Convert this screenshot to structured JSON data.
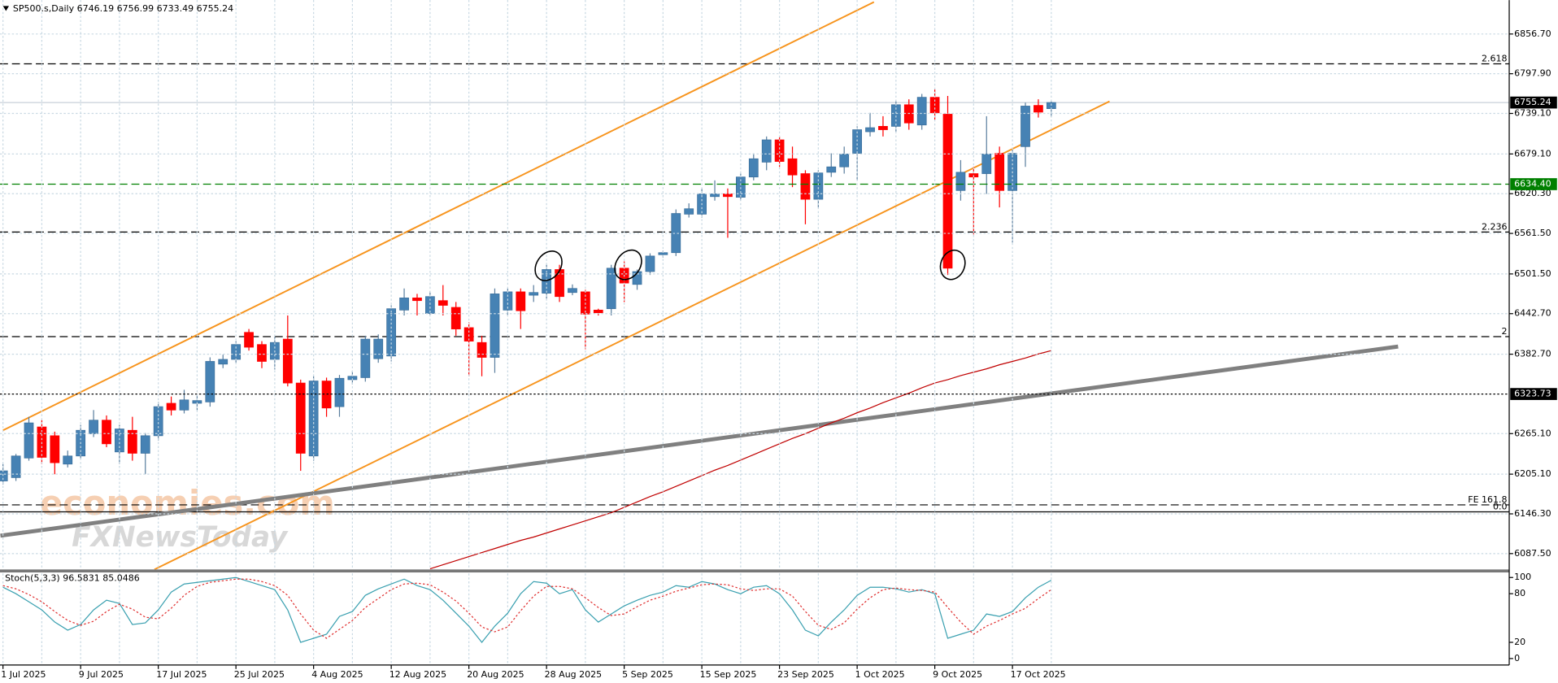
{
  "chart_data": {
    "type": "candlestick",
    "symbol": "SP500.s,Daily",
    "categories": [
      "1 Jul 2025",
      null,
      null,
      null,
      null,
      null,
      "9 Jul 2025",
      null,
      null,
      null,
      null,
      null,
      "17 Jul 2025",
      null,
      null,
      null,
      null,
      null,
      "25 Jul 2025",
      null,
      null,
      null,
      null,
      null,
      "4 Aug 2025",
      null,
      null,
      null,
      null,
      null,
      "12 Aug 2025",
      null,
      null,
      null,
      null,
      null,
      "20 Aug 2025",
      null,
      null,
      null,
      null,
      null,
      "28 Aug 2025",
      null,
      null,
      null,
      null,
      null,
      "5 Sep 2025",
      null,
      null,
      null,
      null,
      null,
      "15 Sep 2025",
      null,
      null,
      null,
      null,
      null,
      "23 Sep 2025",
      null,
      null,
      null,
      null,
      null,
      "1 Oct 2025",
      null,
      null,
      null,
      null,
      null,
      "9 Oct 2025",
      null,
      null,
      null,
      null,
      null,
      "17 Oct 2025",
      null,
      null,
      null
    ],
    "open": [
      6195,
      6200,
      6229,
      6275,
      6262,
      6220,
      6232,
      6265,
      6285,
      6238,
      6270,
      6236,
      6262,
      6310,
      6300,
      6310,
      6312,
      6368,
      6375,
      6415,
      6397,
      6375,
      6405,
      6340,
      6232,
      6343,
      6305,
      6345,
      6348,
      6376,
      6380,
      6448,
      6466,
      6443,
      6462,
      6452,
      6422,
      6400,
      6378,
      6448,
      6475,
      6470,
      6473,
      6508,
      6474,
      6475,
      6448,
      6450,
      6510,
      6486,
      6505,
      6530,
      6533,
      6590,
      6590,
      6616,
      6620,
      6615,
      6645,
      6667,
      6700,
      6672,
      6650,
      6612,
      6652,
      6660,
      6680,
      6712,
      6720,
      6720,
      6752,
      6722,
      6763,
      6738,
      6625,
      6650,
      6650,
      6680,
      6625,
      6690,
      6751,
      6746.19
    ],
    "high": [
      6220,
      6235,
      6290,
      6285,
      6268,
      6240,
      6278,
      6300,
      6292,
      6278,
      6290,
      6266,
      6312,
      6320,
      6330,
      6322,
      6378,
      6382,
      6402,
      6420,
      6402,
      6408,
      6440,
      6345,
      6350,
      6348,
      6352,
      6358,
      6410,
      6412,
      6455,
      6480,
      6472,
      6476,
      6485,
      6460,
      6430,
      6410,
      6480,
      6480,
      6480,
      6485,
      6515,
      6515,
      6486,
      6478,
      6450,
      6515,
      6520,
      6508,
      6532,
      6536,
      6597,
      6606,
      6628,
      6640,
      6628,
      6650,
      6680,
      6705,
      6705,
      6690,
      6655,
      6655,
      6680,
      6690,
      6720,
      6740,
      6735,
      6758,
      6760,
      6768,
      6775,
      6765,
      6670,
      6660,
      6735,
      6690,
      6685,
      6755,
      6760,
      6756.99
    ],
    "low": [
      6190,
      6195,
      6225,
      6220,
      6205,
      6215,
      6228,
      6260,
      6245,
      6220,
      6225,
      6205,
      6255,
      6292,
      6295,
      6300,
      6305,
      6362,
      6370,
      6388,
      6362,
      6360,
      6335,
      6210,
      6225,
      6290,
      6290,
      6338,
      6342,
      6370,
      6372,
      6440,
      6440,
      6440,
      6440,
      6410,
      6350,
      6350,
      6355,
      6440,
      6420,
      6460,
      6465,
      6460,
      6470,
      6390,
      6440,
      6440,
      6460,
      6478,
      6500,
      6526,
      6528,
      6585,
      6585,
      6610,
      6555,
      6610,
      6640,
      6655,
      6660,
      6630,
      6575,
      6600,
      6645,
      6650,
      6640,
      6705,
      6705,
      6712,
      6715,
      6715,
      6730,
      6500,
      6610,
      6560,
      6620,
      6600,
      6548,
      6660,
      6733,
      6733.49
    ],
    "close": [
      6210,
      6232,
      6281,
      6230,
      6222,
      6232,
      6270,
      6285,
      6250,
      6272,
      6236,
      6262,
      6305,
      6300,
      6315,
      6314,
      6372,
      6375,
      6397,
      6393,
      6372,
      6400,
      6340,
      6236,
      6343,
      6303,
      6347,
      6350,
      6405,
      6405,
      6450,
      6466,
      6462,
      6468,
      6455,
      6420,
      6402,
      6378,
      6472,
      6475,
      6447,
      6474,
      6508,
      6468,
      6480,
      6442,
      6444,
      6510,
      6488,
      6505,
      6528,
      6533,
      6591,
      6598,
      6620,
      6620,
      6616,
      6645,
      6672,
      6700,
      6668,
      6648,
      6612,
      6651,
      6660,
      6679,
      6715,
      6718,
      6715,
      6752,
      6725,
      6763,
      6740,
      6510,
      6652,
      6645,
      6679,
      6625,
      6680,
      6750,
      6741,
      6755.24
    ],
    "up_color": "#4682b4",
    "down_color": "#ff0000",
    "ylim": [
      6064,
      6904
    ],
    "yticks": [
      {
        "value": 6856.7,
        "label": "6856.70"
      },
      {
        "value": 6797.9,
        "label": "6797.90"
      },
      {
        "value": 6739.1,
        "label": "6739.10"
      },
      {
        "value": 6679.1,
        "label": "6679.10"
      },
      {
        "value": 6620.3,
        "label": "6620.30"
      },
      {
        "value": 6561.5,
        "label": "6561.50"
      },
      {
        "value": 6501.5,
        "label": "6501.50"
      },
      {
        "value": 6442.7,
        "label": "6442.70"
      },
      {
        "value": 6382.7,
        "label": "6382.70"
      },
      {
        "value": 6265.1,
        "label": "6265.10"
      },
      {
        "value": 6205.1,
        "label": "6205.10"
      },
      {
        "value": 6146.3,
        "label": "6146.30"
      },
      {
        "value": 6087.5,
        "label": "6087.50"
      }
    ],
    "grid": true,
    "ma": {
      "color": "#c00000",
      "values": [
        null,
        null,
        null,
        null,
        null,
        null,
        null,
        null,
        null,
        null,
        null,
        null,
        null,
        null,
        null,
        null,
        null,
        null,
        null,
        null,
        null,
        null,
        null,
        null,
        null,
        null,
        null,
        null,
        null,
        null,
        null,
        null,
        null,
        6065,
        6071,
        6077,
        6083,
        6089,
        6095,
        6101,
        6107,
        6112,
        6118,
        6124,
        6130,
        6136,
        6142,
        6148,
        6156,
        6164,
        6172,
        6179,
        6187,
        6195,
        6203,
        6211,
        6218,
        6226,
        6234,
        6242,
        6250,
        6258,
        6265,
        6273,
        6281,
        6288,
        6296,
        6303,
        6311,
        6318,
        6325,
        6333,
        6340,
        6345,
        6351,
        6356,
        6361,
        6367,
        6372,
        6377,
        6383,
        6388
      ]
    },
    "trendlines": [
      {
        "color": "#f7941d",
        "x": [
          0,
          67.3
        ],
        "y": [
          6270,
          6904
        ]
      },
      {
        "color": "#f7941d",
        "x": [
          11.7,
          85.5
        ],
        "y": [
          6064,
          6757
        ]
      },
      {
        "color": "#808080",
        "x": [
          -0.2,
          107.8
        ],
        "y": [
          6114,
          6394
        ]
      }
    ],
    "levels": [
      {
        "price": 6812.5,
        "text": "2.618",
        "style": "dashed",
        "color": "#000000"
      },
      {
        "price": 6563.5,
        "text": "2.236",
        "style": "dashed",
        "color": "#000000"
      },
      {
        "price": 6408.7,
        "text": "2",
        "style": "dashed",
        "color": "#000000"
      },
      {
        "price": 6159.6,
        "text": "FE 161.8",
        "style": "dashed",
        "color": "#000000"
      },
      {
        "price": 6149.3,
        "text": "0.0",
        "style": "solid",
        "color": "#000000"
      }
    ],
    "price_tags": [
      {
        "value": 6634.4,
        "label": "6634.40",
        "color": "#008000",
        "style": "dashed"
      },
      {
        "value": 6323.73,
        "label": "6323.73",
        "color": "#000000",
        "style": "dotted"
      }
    ],
    "watermark": [
      "economies.com",
      "FXNewsToday"
    ],
    "indicator": {
      "type": "line",
      "title": "Stoch(5,3,3)",
      "ylim": [
        -8,
        105
      ],
      "yticks": [
        100,
        80,
        20,
        0
      ],
      "series": [
        {
          "color": "#3aa0b0",
          "style": "solid",
          "values": [
            88,
            80,
            70,
            60,
            45,
            35,
            42,
            60,
            72,
            68,
            42,
            44,
            60,
            82,
            92,
            94,
            96,
            98,
            100,
            95,
            90,
            85,
            60,
            20,
            25,
            30,
            52,
            58,
            78,
            86,
            92,
            98,
            90,
            85,
            72,
            56,
            40,
            20,
            40,
            56,
            80,
            95,
            93,
            80,
            85,
            60,
            45,
            55,
            65,
            72,
            78,
            82,
            90,
            88,
            95,
            92,
            85,
            80,
            88,
            90,
            80,
            60,
            35,
            28,
            45,
            60,
            78,
            88,
            88,
            86,
            82,
            85,
            80,
            25,
            30,
            35,
            55,
            52,
            58,
            75,
            88,
            96.5831
          ]
        },
        {
          "color": "#e03030",
          "style": "dotted",
          "values": [
            90,
            86,
            79,
            70,
            58,
            47,
            41,
            46,
            58,
            67,
            61,
            51,
            49,
            62,
            78,
            89,
            94,
            96,
            98,
            98,
            95,
            90,
            78,
            55,
            35,
            25,
            36,
            47,
            63,
            74,
            85,
            92,
            93,
            91,
            82,
            71,
            56,
            39,
            33,
            39,
            59,
            77,
            89,
            89,
            86,
            75,
            63,
            53,
            55,
            64,
            72,
            77,
            83,
            87,
            91,
            92,
            91,
            86,
            84,
            86,
            86,
            77,
            58,
            41,
            36,
            44,
            61,
            75,
            85,
            87,
            85,
            84,
            82,
            63,
            45,
            30,
            40,
            47,
            55,
            62,
            74,
            85.0486
          ]
        }
      ]
    }
  }
}
